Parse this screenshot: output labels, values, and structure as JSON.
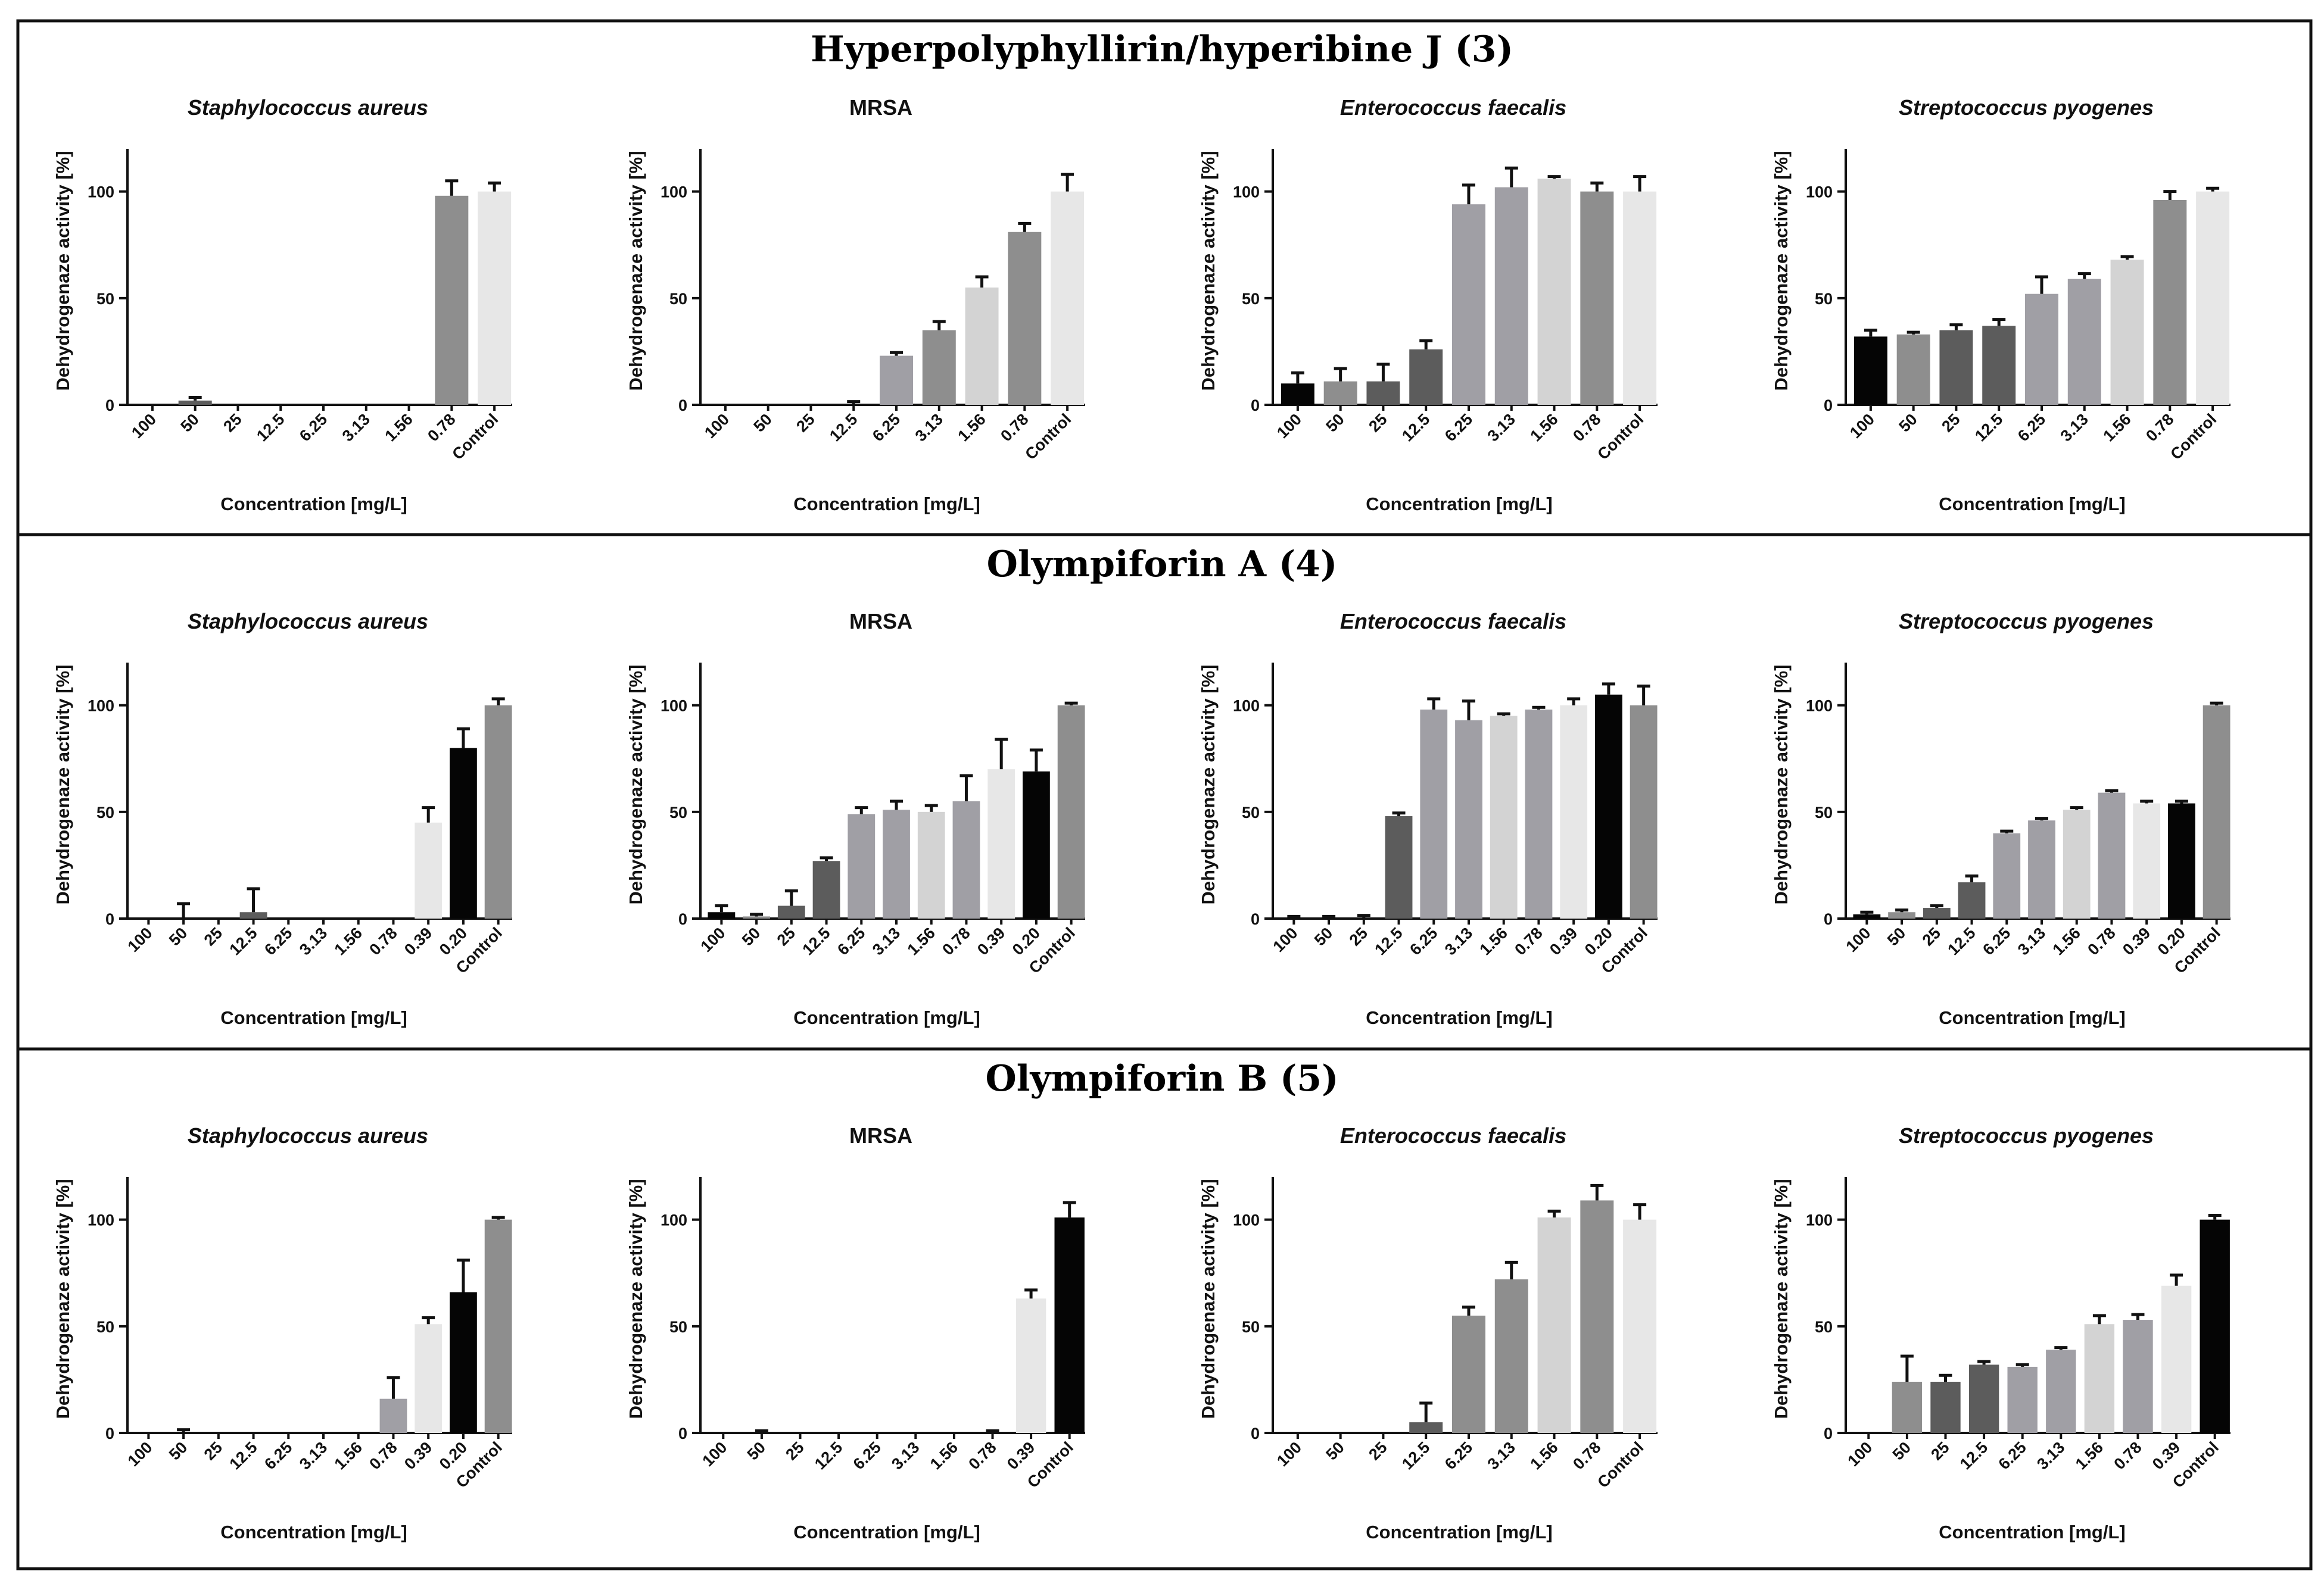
{
  "colors": {
    "black": "#050505",
    "dark": "#5c5c5c",
    "mid": "#8e8e8e",
    "lavender": "#a09fa5",
    "light": "#d3d3d3",
    "pale": "#e7e7e7"
  },
  "chart_data": [
    {
      "section_title": "Hyperpolyphyllirin/hyperibine J (3)",
      "panels": [
        {
          "type": "bar",
          "title": "Staphylococcus aureus",
          "italic": true,
          "xlabel": "Concentration [mg/L]",
          "ylabel": "Dehydrogenaze activity [%]",
          "ylim": [
            0,
            120
          ],
          "yticks": [
            0,
            50,
            100
          ],
          "categories": [
            "100",
            "50",
            "25",
            "12.5",
            "6.25",
            "3.13",
            "1.56",
            "0.78",
            "Control"
          ],
          "values": [
            0,
            2,
            0,
            0,
            0,
            0,
            0,
            98,
            100
          ],
          "errors": [
            0,
            1.5,
            0,
            0,
            0,
            0,
            0,
            7,
            4
          ],
          "colors": [
            "black",
            "dark",
            "dark",
            "dark",
            "lavender",
            "lavender",
            "light",
            "mid",
            "pale"
          ]
        },
        {
          "type": "bar",
          "title": "MRSA",
          "italic": false,
          "xlabel": "Concentration [mg/L]",
          "ylabel": "Dehydrogenaze activity [%]",
          "ylim": [
            0,
            120
          ],
          "yticks": [
            0,
            50,
            100
          ],
          "categories": [
            "100",
            "50",
            "25",
            "12.5",
            "6.25",
            "3.13",
            "1.56",
            "0.78",
            "Control"
          ],
          "values": [
            0,
            0,
            0,
            0,
            23,
            35,
            55,
            81,
            100
          ],
          "errors": [
            0,
            0,
            0,
            1.5,
            1.5,
            4,
            5,
            4,
            8
          ],
          "colors": [
            "black",
            "dark",
            "dark",
            "dark",
            "lavender",
            "mid",
            "light",
            "mid",
            "pale"
          ]
        },
        {
          "type": "bar",
          "title": "Enterococcus faecalis",
          "italic": true,
          "xlabel": "Concentration [mg/L]",
          "ylabel": "Dehydrogenaze activity [%]",
          "ylim": [
            0,
            120
          ],
          "yticks": [
            0,
            50,
            100
          ],
          "categories": [
            "100",
            "50",
            "25",
            "12.5",
            "6.25",
            "3.13",
            "1.56",
            "0.78",
            "Control"
          ],
          "values": [
            10,
            11,
            11,
            26,
            94,
            102,
            106,
            100,
            100
          ],
          "errors": [
            5,
            6,
            8,
            4,
            9,
            9,
            1,
            4,
            7
          ],
          "colors": [
            "black",
            "mid",
            "dark",
            "dark",
            "lavender",
            "lavender",
            "light",
            "mid",
            "pale"
          ]
        },
        {
          "type": "bar",
          "title": "Streptococcus pyogenes",
          "italic": true,
          "xlabel": "Concentration [mg/L]",
          "ylabel": "Dehydrogenaze activity [%]",
          "ylim": [
            0,
            120
          ],
          "yticks": [
            0,
            50,
            100
          ],
          "categories": [
            "100",
            "50",
            "25",
            "12.5",
            "6.25",
            "3.13",
            "1.56",
            "0.78",
            "Control"
          ],
          "values": [
            32,
            33,
            35,
            37,
            52,
            59,
            68,
            96,
            100
          ],
          "errors": [
            3,
            1,
            2.5,
            3,
            8,
            2.5,
            1.5,
            4,
            1.5
          ],
          "colors": [
            "black",
            "mid",
            "dark",
            "dark",
            "lavender",
            "lavender",
            "light",
            "mid",
            "pale"
          ]
        }
      ]
    },
    {
      "section_title": "Olympiforin A (4)",
      "panels": [
        {
          "type": "bar",
          "title": "Staphylococcus aureus",
          "italic": true,
          "xlabel": "Concentration [mg/L]",
          "ylabel": "Dehydrogenaze activity [%]",
          "ylim": [
            0,
            120
          ],
          "yticks": [
            0,
            50,
            100
          ],
          "categories": [
            "100",
            "50",
            "25",
            "12.5",
            "6.25",
            "3.13",
            "1.56",
            "0.78",
            "0.39",
            "0.20",
            "Control"
          ],
          "values": [
            0,
            0,
            0,
            3,
            0,
            0,
            0,
            0,
            45,
            80,
            100
          ],
          "errors": [
            0,
            7,
            0,
            11,
            0,
            0,
            0,
            0,
            7,
            9,
            3
          ],
          "colors": [
            "black",
            "dark",
            "dark",
            "dark",
            "lavender",
            "lavender",
            "light",
            "mid",
            "pale",
            "black",
            "mid"
          ]
        },
        {
          "type": "bar",
          "title": "MRSA",
          "italic": false,
          "xlabel": "Concentration [mg/L]",
          "ylabel": "Dehydrogenaze activity [%]",
          "ylim": [
            0,
            120
          ],
          "yticks": [
            0,
            50,
            100
          ],
          "categories": [
            "100",
            "50",
            "25",
            "12.5",
            "6.25",
            "3.13",
            "1.56",
            "0.78",
            "0.39",
            "0.20",
            "Control"
          ],
          "values": [
            3,
            1,
            6,
            27,
            49,
            51,
            50,
            55,
            70,
            69,
            100
          ],
          "errors": [
            3,
            1,
            7,
            1.5,
            3,
            4,
            3,
            12,
            14,
            10,
            1
          ],
          "colors": [
            "black",
            "mid",
            "dark",
            "dark",
            "lavender",
            "lavender",
            "light",
            "lavender",
            "pale",
            "black",
            "mid"
          ]
        },
        {
          "type": "bar",
          "title": "Enterococcus faecalis",
          "italic": true,
          "xlabel": "Concentration [mg/L]",
          "ylabel": "Dehydrogenaze activity [%]",
          "ylim": [
            0,
            120
          ],
          "yticks": [
            0,
            50,
            100
          ],
          "categories": [
            "100",
            "50",
            "25",
            "12.5",
            "6.25",
            "3.13",
            "1.56",
            "0.78",
            "0.39",
            "0.20",
            "Control"
          ],
          "values": [
            0,
            0,
            0,
            48,
            98,
            93,
            95,
            98,
            100,
            105,
            100
          ],
          "errors": [
            1,
            1,
            1.5,
            1.5,
            5,
            9,
            1,
            1,
            3,
            5,
            9
          ],
          "colors": [
            "black",
            "mid",
            "dark",
            "dark",
            "lavender",
            "lavender",
            "light",
            "lavender",
            "pale",
            "black",
            "mid"
          ]
        },
        {
          "type": "bar",
          "title": "Streptococcus pyogenes",
          "italic": true,
          "xlabel": "Concentration [mg/L]",
          "ylabel": "Dehydrogenaze activity [%]",
          "ylim": [
            0,
            120
          ],
          "yticks": [
            0,
            50,
            100
          ],
          "categories": [
            "100",
            "50",
            "25",
            "12.5",
            "6.25",
            "3.13",
            "1.56",
            "0.78",
            "0.39",
            "0.20",
            "Control"
          ],
          "values": [
            2,
            3,
            5,
            17,
            40,
            46,
            51,
            59,
            54,
            54,
            100
          ],
          "errors": [
            1,
            1,
            1,
            3,
            1,
            1,
            1,
            1,
            1,
            1,
            1
          ],
          "colors": [
            "black",
            "mid",
            "dark",
            "dark",
            "lavender",
            "lavender",
            "light",
            "lavender",
            "pale",
            "black",
            "mid"
          ]
        }
      ]
    },
    {
      "section_title": "Olympiforin B (5)",
      "panels": [
        {
          "type": "bar",
          "title": "Staphylococcus aureus",
          "italic": true,
          "xlabel": "Concentration [mg/L]",
          "ylabel": "Dehydrogenaze activity [%]",
          "ylim": [
            0,
            120
          ],
          "yticks": [
            0,
            50,
            100
          ],
          "categories": [
            "100",
            "50",
            "25",
            "12.5",
            "6.25",
            "3.13",
            "1.56",
            "0.78",
            "0.39",
            "0.20",
            "Control"
          ],
          "values": [
            0,
            0,
            0,
            0,
            0,
            0,
            0,
            16,
            51,
            66,
            100
          ],
          "errors": [
            0,
            1.5,
            0,
            0,
            0,
            0,
            0,
            10,
            3,
            15,
            1
          ],
          "colors": [
            "black",
            "dark",
            "dark",
            "dark",
            "lavender",
            "lavender",
            "light",
            "lavender",
            "pale",
            "black",
            "mid"
          ]
        },
        {
          "type": "bar",
          "title": "MRSA",
          "italic": false,
          "xlabel": "Concentration [mg/L]",
          "ylabel": "Dehydrogenaze activity [%]",
          "ylim": [
            0,
            120
          ],
          "yticks": [
            0,
            50,
            100
          ],
          "categories": [
            "100",
            "50",
            "25",
            "12.5",
            "6.25",
            "3.13",
            "1.56",
            "0.78",
            "0.39",
            "Control"
          ],
          "values": [
            0,
            0,
            0,
            0,
            0,
            0,
            0,
            0,
            63,
            101
          ],
          "errors": [
            0,
            1,
            0,
            0,
            0,
            0,
            0,
            1,
            4,
            7
          ],
          "colors": [
            "black",
            "dark",
            "dark",
            "dark",
            "lavender",
            "lavender",
            "light",
            "lavender",
            "pale",
            "black"
          ]
        },
        {
          "type": "bar",
          "title": "Enterococcus faecalis",
          "italic": true,
          "xlabel": "Concentration [mg/L]",
          "ylabel": "Dehydrogenaze activity [%]",
          "ylim": [
            0,
            120
          ],
          "yticks": [
            0,
            50,
            100
          ],
          "categories": [
            "100",
            "50",
            "25",
            "12.5",
            "6.25",
            "3.13",
            "1.56",
            "0.78",
            "Control"
          ],
          "values": [
            0,
            0,
            0,
            5,
            55,
            72,
            101,
            109,
            100
          ],
          "errors": [
            0,
            0,
            0,
            9,
            4,
            8,
            3,
            7,
            7
          ],
          "colors": [
            "black",
            "dark",
            "dark",
            "dark",
            "mid",
            "mid",
            "light",
            "mid",
            "pale"
          ]
        },
        {
          "type": "bar",
          "title": "Streptococcus pyogenes",
          "italic": true,
          "xlabel": "Concentration [mg/L]",
          "ylabel": "Dehydrogenaze activity [%]",
          "ylim": [
            0,
            120
          ],
          "yticks": [
            0,
            50,
            100
          ],
          "categories": [
            "100",
            "50",
            "25",
            "12.5",
            "6.25",
            "3.13",
            "1.56",
            "0.78",
            "0.39",
            "Control"
          ],
          "values": [
            0,
            24,
            24,
            32,
            31,
            39,
            51,
            53,
            69,
            100
          ],
          "errors": [
            0,
            12,
            3,
            1.5,
            1,
            1,
            4,
            2.5,
            5,
            2
          ],
          "colors": [
            "black",
            "mid",
            "dark",
            "dark",
            "lavender",
            "lavender",
            "light",
            "lavender",
            "pale",
            "black"
          ]
        }
      ]
    }
  ]
}
